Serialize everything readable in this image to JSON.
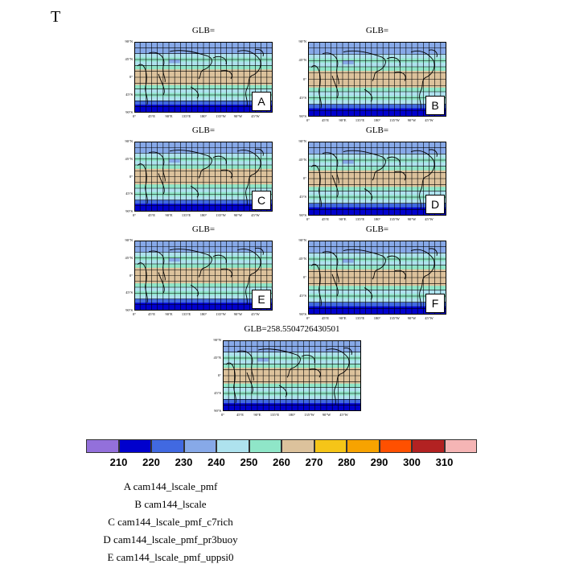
{
  "title": "T",
  "chart_data": {
    "type": "heatmap",
    "panels": [
      {
        "id": "A",
        "title": "GLB=",
        "label": "A"
      },
      {
        "id": "B",
        "title": "GLB=",
        "label": "B"
      },
      {
        "id": "C",
        "title": "GLB=",
        "label": "C"
      },
      {
        "id": "D",
        "title": "GLB=",
        "label": "D"
      },
      {
        "id": "E",
        "title": "GLB=",
        "label": "E"
      },
      {
        "id": "F",
        "title": "GLB=",
        "label": "F"
      },
      {
        "id": "G",
        "title": "GLB=258.5504726430501",
        "label": ""
      }
    ],
    "lat_ticks": [
      "90°N",
      "45°N",
      "0°",
      "45°S",
      "90°S"
    ],
    "lon_ticks": [
      "0°",
      "45°E",
      "90°E",
      "135°E",
      "180°",
      "135°W",
      "90°W",
      "45°W"
    ],
    "colorbar": {
      "levels": [
        210,
        220,
        230,
        240,
        250,
        260,
        270,
        280,
        290,
        300,
        310
      ],
      "colors": [
        "#9370db",
        "#0000cd",
        "#4169e1",
        "#87a9e8",
        "#aee2ee",
        "#8fe6c8",
        "#dcc29c",
        "#f5c518",
        "#f7a300",
        "#ff5000",
        "#b22222",
        "#f5b5b5"
      ]
    },
    "legend": [
      "A  cam144_lscale_pmf",
      "B  cam144_lscale",
      "C  cam144_lscale_pmf_c7rich",
      "D  cam144_lscale_pmf_pr3buoy",
      "E  cam144_lscale_pmf_uppsi0"
    ]
  }
}
